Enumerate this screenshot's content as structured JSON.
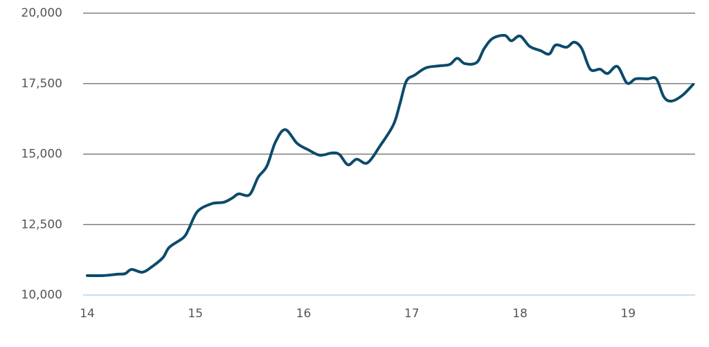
{
  "chart_data": {
    "type": "line",
    "xlim": [
      14,
      19.6
    ],
    "xticks": [
      14,
      15,
      16,
      17,
      18,
      19
    ],
    "ylim": [
      10000,
      20000
    ],
    "yticks": [
      {
        "value": 10000,
        "label": "10,000"
      },
      {
        "value": 12500,
        "label": "12,500"
      },
      {
        "value": 15000,
        "label": "15,000"
      },
      {
        "value": 17500,
        "label": "17,500"
      },
      {
        "value": 20000,
        "label": "20,000"
      }
    ],
    "grid": true,
    "series": [
      {
        "color": "#0c4a6a",
        "x": [
          14.0,
          14.15,
          14.28,
          14.35,
          14.41,
          14.51,
          14.6,
          14.7,
          14.76,
          14.89,
          14.94,
          15.02,
          15.15,
          15.26,
          15.34,
          15.4,
          15.5,
          15.58,
          15.66,
          15.74,
          15.83,
          15.94,
          16.04,
          16.15,
          16.26,
          16.33,
          16.41,
          16.49,
          16.59,
          16.71,
          16.83,
          16.89,
          16.95,
          17.03,
          17.13,
          17.25,
          17.35,
          17.42,
          17.49,
          17.6,
          17.67,
          17.75,
          17.86,
          17.92,
          18.0,
          18.09,
          18.19,
          18.27,
          18.33,
          18.43,
          18.5,
          18.57,
          18.65,
          18.74,
          18.81,
          18.9,
          18.99,
          19.07,
          19.18,
          19.26,
          19.33,
          19.4,
          19.5,
          19.6
        ],
        "values": [
          10690,
          10690,
          10740,
          10760,
          10910,
          10810,
          11010,
          11330,
          11700,
          12040,
          12360,
          12970,
          13240,
          13290,
          13440,
          13590,
          13560,
          14180,
          14570,
          15430,
          15870,
          15380,
          15160,
          14960,
          15040,
          14990,
          14620,
          14820,
          14690,
          15310,
          16040,
          16780,
          17590,
          17810,
          18060,
          18130,
          18180,
          18400,
          18210,
          18250,
          18750,
          19110,
          19210,
          19020,
          19190,
          18820,
          18670,
          18550,
          18870,
          18790,
          18970,
          18750,
          18010,
          18010,
          17860,
          18110,
          17520,
          17670,
          17670,
          17670,
          17030,
          16880,
          17080,
          17470
        ]
      }
    ]
  }
}
